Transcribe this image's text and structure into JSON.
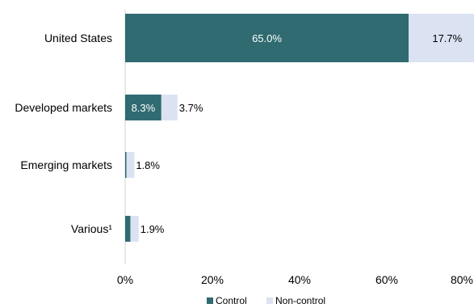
{
  "chart_data": {
    "type": "bar",
    "orientation": "horizontal",
    "stacked": true,
    "categories": [
      "United States",
      "Developed markets",
      "Emerging markets",
      "Various¹"
    ],
    "series": [
      {
        "name": "Control",
        "color": "#2f6b70",
        "values": [
          65.0,
          8.3,
          0.3,
          1.2
        ],
        "labels": [
          "65.0%",
          "8.3%",
          "",
          ""
        ]
      },
      {
        "name": "Non-control",
        "color": "#dbe3f3",
        "values": [
          17.7,
          3.7,
          1.8,
          1.9
        ],
        "labels": [
          "17.7%",
          "3.7%",
          "1.8%",
          "1.9%"
        ]
      }
    ],
    "xlim": [
      0,
      80
    ],
    "xticks": [
      0,
      20,
      40,
      60,
      80
    ],
    "xtick_labels": [
      "0%",
      "20%",
      "40%",
      "60%",
      "80%"
    ],
    "grid": false,
    "legend_position": "bottom"
  }
}
